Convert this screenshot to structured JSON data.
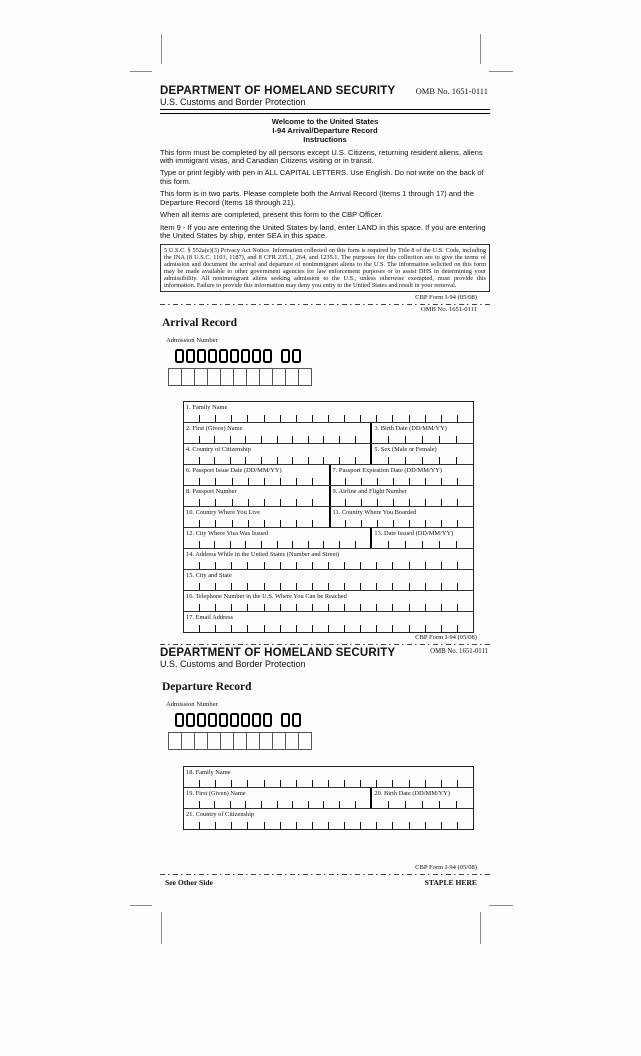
{
  "colors": {
    "ink": "#000000",
    "paper": "#fdfdfd"
  },
  "header": {
    "agency": "DEPARTMENT OF HOMELAND SECURITY",
    "bureau": "U.S. Customs and Border Protection",
    "omb": "OMB No. 1651-0111"
  },
  "instructions": {
    "welcome": "Welcome to the United States",
    "form_title": "I-94 Arrival/Departure Record",
    "instructions_heading": "Instructions",
    "paragraphs": [
      "This form must be completed by all persons except U.S. Citizens, returning resident aliens, aliens with immigrant visas, and Canadian Citizens visiting or in transit.",
      "Type or print legibly with pen in ALL CAPITAL LETTERS. Use English. Do not write on the back of this form.",
      "This form is in two parts. Please complete both the Arrival Record (Items 1 through 17) and the Departure Record (Items 18 through 21).",
      "When all items are completed, present this form to the CBP Officer.",
      "Item 9 - If you are entering the United States by land, enter LAND in this space. If you are entering the United States by ship, enter SEA in this space."
    ],
    "privacy_notice": "5 U.S.C. § 552a(e)(3) Privacy Act Notice. Information collected on this form is required by Title 8 of the U.S. Code, including the INA (8 U.S.C. 1103, 1187), and 8 CFR 235.1, 264, and 1235.1. The purposes for this collection are to give the terms of admission and document the arrival and departure of nonimmigrant aliens to the U.S. The information solicited on this form may be made available to other government agencies for law enforcement purposes or to assist DHS in determining your admissibility. All nonimmigrant aliens seeking admission to the U.S., unless otherwise exempted, must provide this information. Failure to provide this information may deny you entry to the United States and result in your removal."
  },
  "footer": {
    "cbp_form": "CBP Form I-94 (05/08)"
  },
  "arrival": {
    "omb": "OMB No. 1651-0111",
    "title": "Arrival Record",
    "admission_number_label": "Admission Number",
    "admission_number": "000000000 00",
    "write_boxes": 11,
    "fields": [
      {
        "cells": [
          {
            "label": "1. Family Name",
            "width": 100,
            "ticks": 18
          }
        ]
      },
      {
        "cells": [
          {
            "label": "2. First (Given) Name",
            "width": 64.5,
            "ticks": 12
          },
          {
            "label": "3. Birth Date (DD/MM/YY)",
            "width": 35.5,
            "ticks": 6
          }
        ]
      },
      {
        "cells": [
          {
            "label": "4. Country of Citizenship",
            "width": 64.5,
            "ticks": 12
          },
          {
            "label": "5. Sex (Male or Female)",
            "width": 35.5,
            "ticks": 6
          }
        ]
      },
      {
        "cells": [
          {
            "label": "6. Passport Issue Date (DD/MM/YY)",
            "width": 50,
            "ticks": 9
          },
          {
            "label": "7. Passport Expiration Date (DD/MM/YY)",
            "width": 50,
            "ticks": 9
          }
        ]
      },
      {
        "cells": [
          {
            "label": "8. Passport Number",
            "width": 50,
            "ticks": 9
          },
          {
            "label": "9. Airline and Flight Number",
            "width": 50,
            "ticks": 9
          }
        ]
      },
      {
        "cells": [
          {
            "label": "10. Country Where You Live",
            "width": 50,
            "ticks": 9
          },
          {
            "label": "11. Country Where You Boarded",
            "width": 50,
            "ticks": 9
          }
        ]
      },
      {
        "cells": [
          {
            "label": "12. City Where Visa Was Issued",
            "width": 64.5,
            "ticks": 12
          },
          {
            "label": "13. Date Issued (DD/MM/YY)",
            "width": 35.5,
            "ticks": 6
          }
        ]
      },
      {
        "cells": [
          {
            "label": "14. Address While in the United States (Number and Street)",
            "width": 100,
            "ticks": 18
          }
        ]
      },
      {
        "cells": [
          {
            "label": "15. City and State",
            "width": 100,
            "ticks": 18
          }
        ]
      },
      {
        "cells": [
          {
            "label": "16. Telephone Number in the U.S. Where You Can be Reached",
            "width": 100,
            "ticks": 18
          }
        ]
      },
      {
        "cells": [
          {
            "label": "17. Email Address",
            "width": 100,
            "ticks": 18
          }
        ]
      }
    ]
  },
  "departure": {
    "header": {
      "agency": "DEPARTMENT OF HOMELAND SECURITY",
      "bureau": "U.S. Customs and Border Protection",
      "omb": "OMB No. 1651-0111"
    },
    "title": "Departure Record",
    "admission_number_label": "Admission Number",
    "admission_number": "000000000 00",
    "write_boxes": 11,
    "fields": [
      {
        "cells": [
          {
            "label": "18. Family Name",
            "width": 100,
            "ticks": 18
          }
        ]
      },
      {
        "cells": [
          {
            "label": "19. First (Given) Name",
            "width": 64.5,
            "ticks": 12
          },
          {
            "label": "20. Birth Date (DD/MM/YY)",
            "width": 35.5,
            "ticks": 6
          }
        ]
      },
      {
        "cells": [
          {
            "label": "21. Country of Citizenship",
            "width": 100,
            "ticks": 18
          }
        ]
      }
    ]
  },
  "bottom": {
    "see_other_side": "See Other Side",
    "staple_here": "STAPLE HERE"
  }
}
